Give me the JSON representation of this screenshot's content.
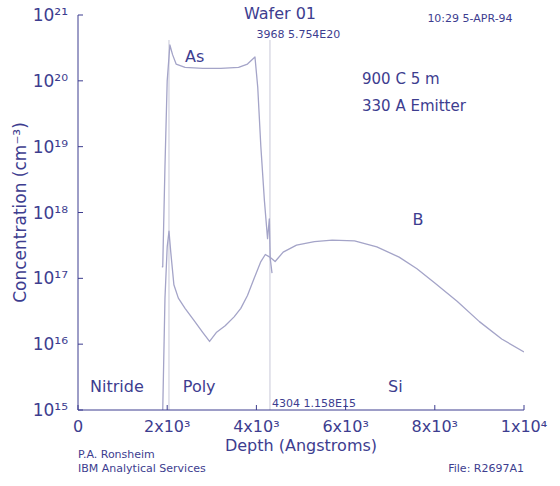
{
  "chart_data": {
    "type": "line",
    "title": "Wafer 01",
    "timestamp": "10:29 5-APR-94",
    "notes": [
      "900 C 5 m",
      "330 A Emitter"
    ],
    "x_label": "Depth (Angstroms)",
    "y_label": "Concentration (cm⁻³)",
    "log": "y",
    "xlim": [
      0,
      10000
    ],
    "ylim": [
      1000000000000000.0,
      1e+21
    ],
    "xticks": [
      0,
      {
        "value": 2000,
        "label": "2x10³"
      },
      {
        "value": 4000,
        "label": "4x10³"
      },
      {
        "value": 6000,
        "label": "6x10³"
      },
      {
        "value": 8000,
        "label": "8x10³"
      },
      {
        "value": 10000,
        "label": "1x10⁴"
      }
    ],
    "yticks": [
      {
        "value": 1000000000000000.0,
        "label": "10¹⁵"
      },
      {
        "value": 1e+16,
        "label": "10¹⁶"
      },
      {
        "value": 1e+17,
        "label": "10¹⁷"
      },
      {
        "value": 1e+18,
        "label": "10¹⁸"
      },
      {
        "value": 1e+19,
        "label": "10¹⁹"
      },
      {
        "value": 1e+20,
        "label": "10²⁰"
      },
      {
        "value": 1e+21,
        "label": "10²¹"
      }
    ],
    "series": [
      {
        "name": "As",
        "color": "#a4a4c8",
        "label_at": [
          2400,
          1.9e+20
        ],
        "x": [
          1880,
          1900,
          1950,
          2000,
          2060,
          2120,
          2200,
          2400,
          2800,
          3200,
          3600,
          3800,
          3968,
          4030,
          4100,
          4180,
          4250,
          4290,
          4310,
          4350
        ],
        "values": [
          1.5e+17,
          1.5e+17,
          5e+18,
          1e+20,
          3.5e+20,
          2.5e+20,
          1.8e+20,
          1.6e+20,
          1.55e+20,
          1.55e+20,
          1.6e+20,
          1.8e+20,
          2.3e+20,
          8e+19,
          1e+19,
          1.5e+18,
          4e+17,
          8e+17,
          2e+17,
          1.2e+17
        ]
      },
      {
        "name": "B",
        "color": "#a4a4c8",
        "label_at": [
          7500,
          6.5e+17
        ],
        "x": [
          1900,
          1950,
          2000,
          2040,
          2080,
          2150,
          2250,
          2400,
          2600,
          2800,
          2950,
          3100,
          3300,
          3500,
          3650,
          3800,
          3950,
          4100,
          4200,
          4300,
          4420,
          4600,
          4900,
          5300,
          5700,
          6200,
          6700,
          7200,
          7600,
          8000,
          8500,
          9000,
          9500,
          10000
        ],
        "values": [
          1000000000000000.0,
          5e+16,
          3e+17,
          5.2e+17,
          2.5e+17,
          8e+16,
          5e+16,
          3.5e+16,
          2.3e+16,
          1.5e+16,
          1.1e+16,
          1.5e+16,
          1.9e+16,
          2.6e+16,
          3.5e+16,
          5.5e+16,
          1e+17,
          1.8e+17,
          2.3e+17,
          2.1e+17,
          1.8e+17,
          2.5e+17,
          3.2e+17,
          3.6e+17,
          3.8e+17,
          3.7e+17,
          3e+17,
          2.1e+17,
          1.4e+17,
          8.5e+16,
          4.5e+16,
          2.2e+16,
          1.2e+16,
          7600000000000000.0
        ]
      }
    ],
    "cursors": [
      2040,
      4304
    ],
    "annotations": [
      {
        "text": "3968 5.754E20",
        "x": 4000,
        "y": 4.5e+20
      },
      {
        "text": "4304 1.158E15",
        "x": 4350,
        "y": 1100000000000000.0
      },
      {
        "text": "Nitride",
        "x": 270,
        "y": 1900000000000000.0
      },
      {
        "text": "Poly",
        "x": 2350,
        "y": 1900000000000000.0
      },
      {
        "text": "Si",
        "x": 6950,
        "y": 1900000000000000.0
      }
    ],
    "footer": [
      "P.A. Ronsheim",
      "IBM Analytical Services"
    ],
    "file": "File: R2697A1"
  }
}
